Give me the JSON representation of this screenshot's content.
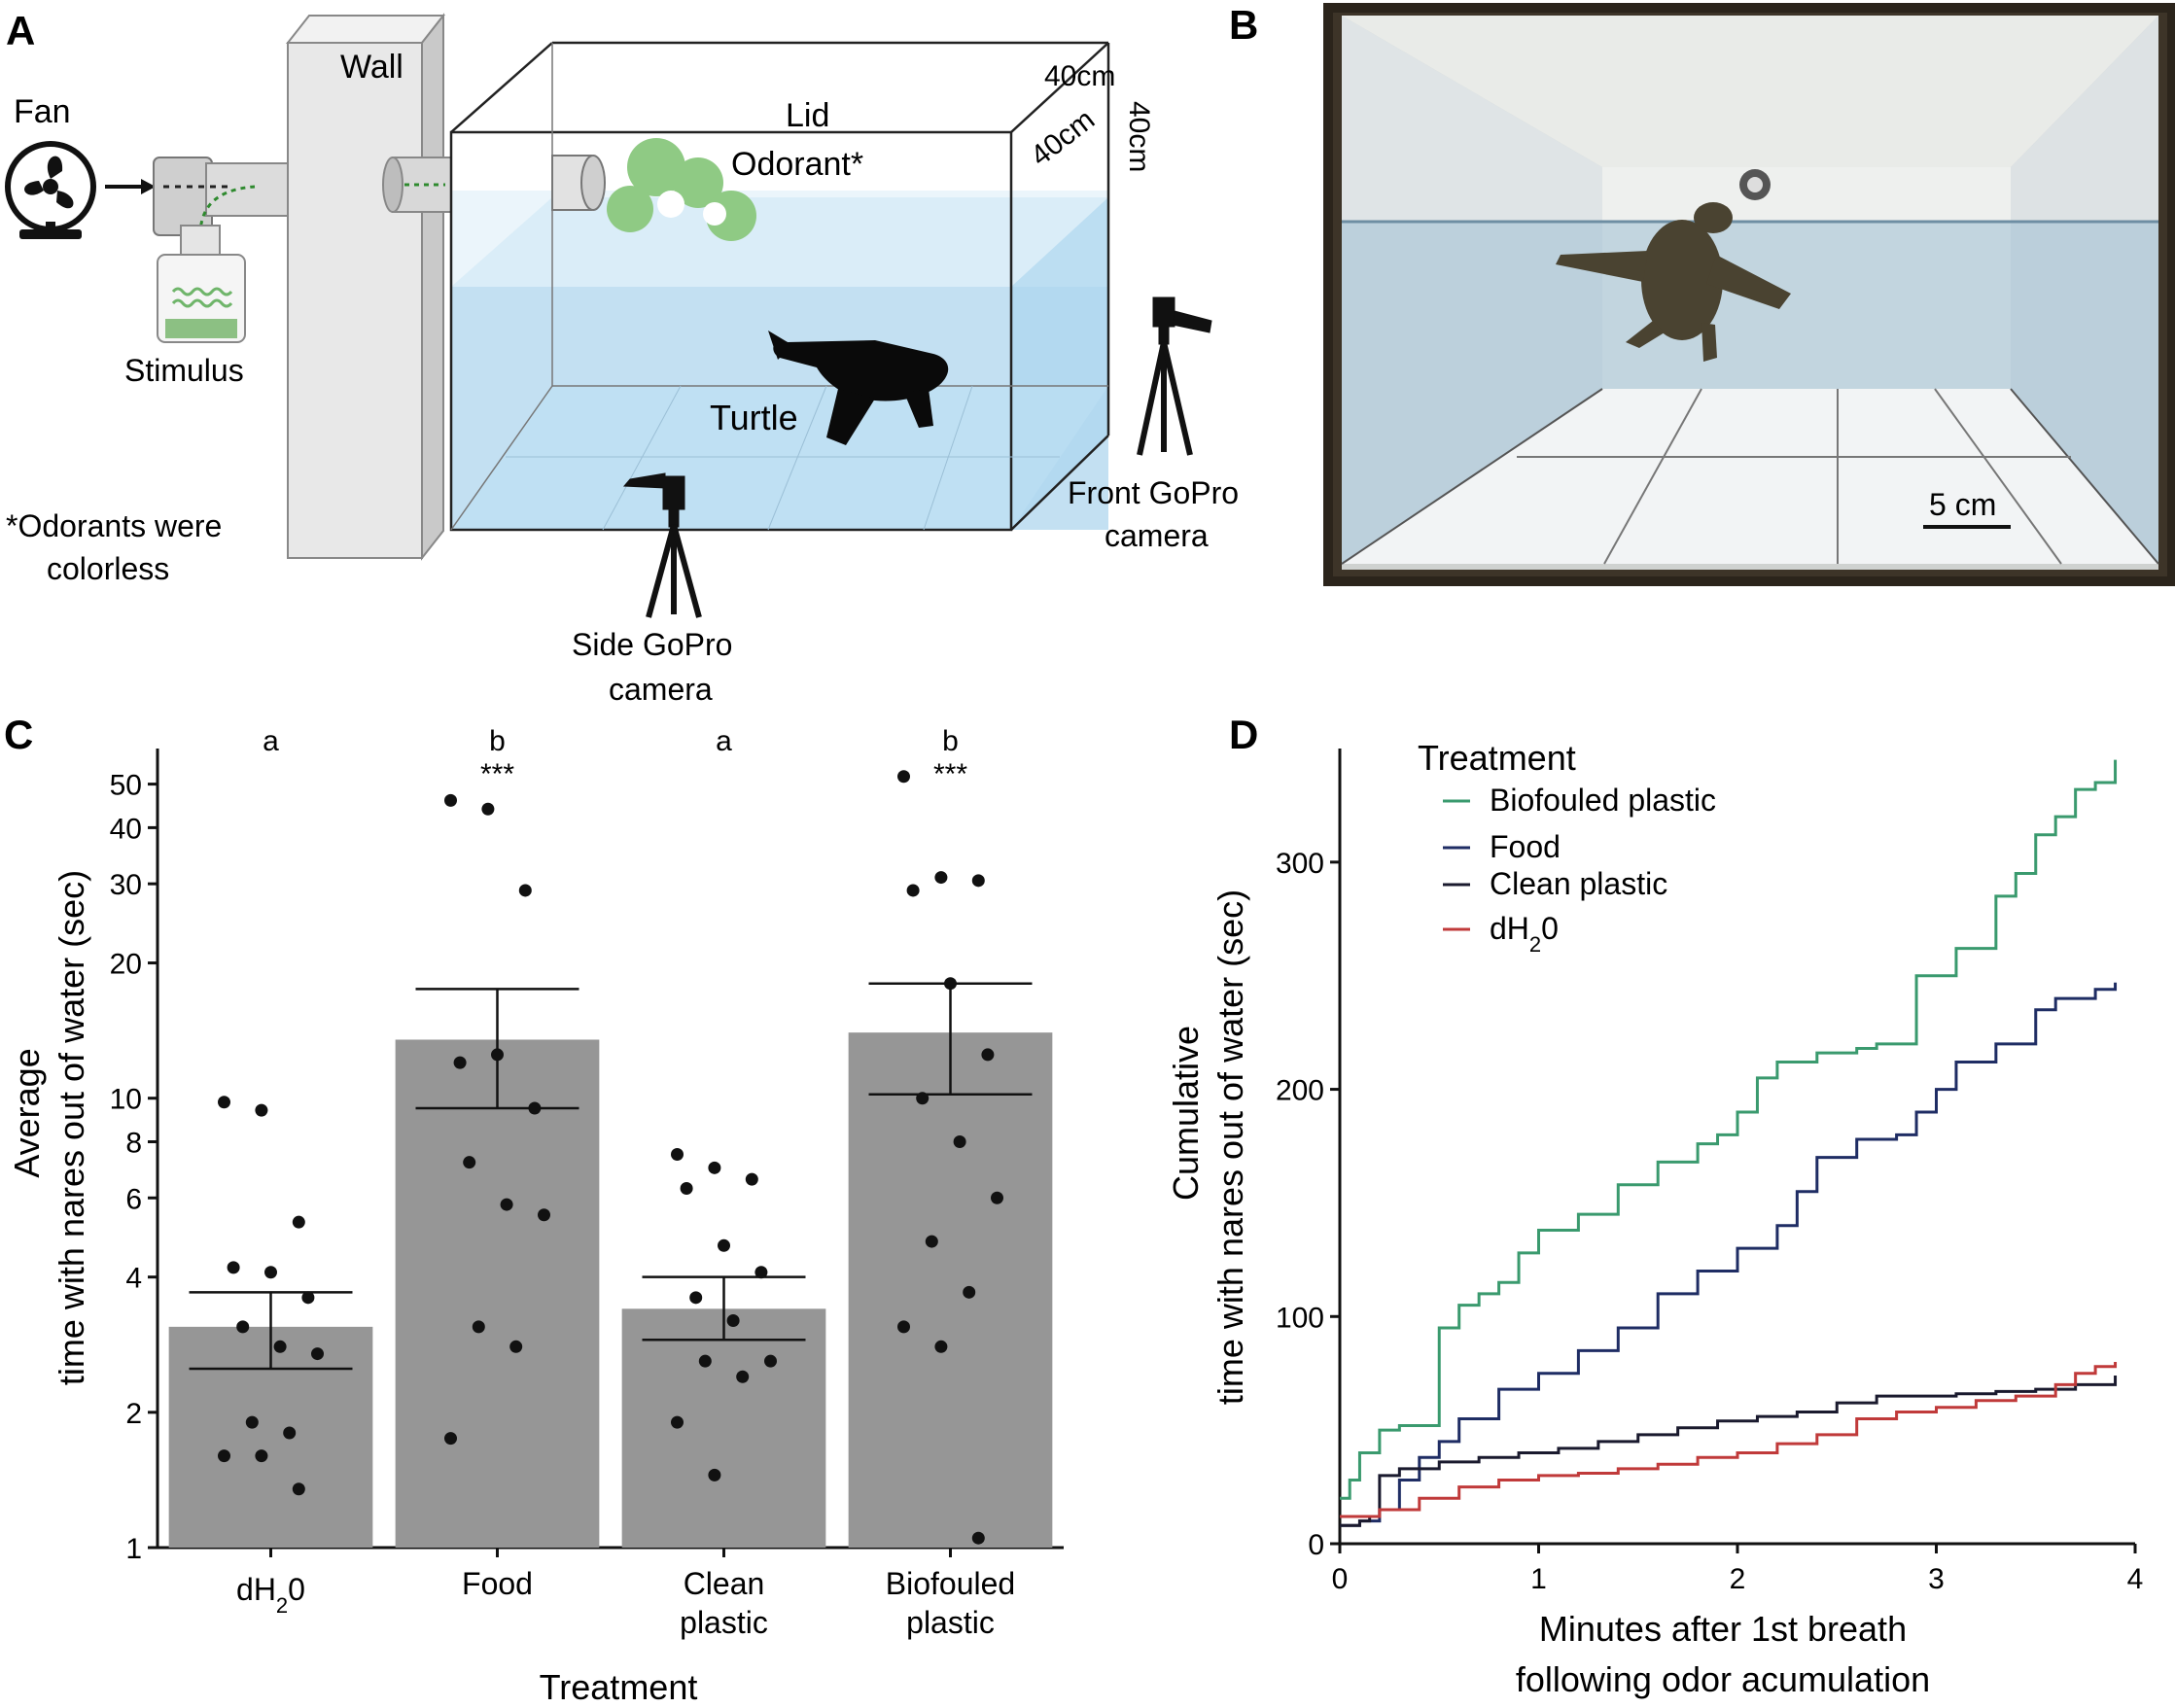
{
  "panel_a": {
    "letter": "A",
    "fan_label": "Fan",
    "stimulus_label": "Stimulus",
    "wall_label": "Wall",
    "lid_label": "Lid",
    "odorant_label": "Odorant*",
    "dim_top": "40cm",
    "dim_side": "40cm",
    "dim_depth": "40cm",
    "turtle_label": "Turtle",
    "front_camera_label": [
      "Front GoPro",
      "camera"
    ],
    "side_camera_label": [
      "Side GoPro",
      "camera"
    ],
    "footnote": [
      "*Odorants were",
      "colorless"
    ],
    "colors": {
      "water": "#cfe6f4",
      "water_dark": "#a9d2ec",
      "odor": "#8fca84",
      "wall": "#e6e6e6"
    }
  },
  "panel_b": {
    "letter": "B",
    "scale_bar_label": "5 cm"
  },
  "panel_c": {
    "letter": "C",
    "y_axis_title": [
      "Average",
      "time with nares out of water (sec)"
    ],
    "x_axis_title": "Treatment",
    "bar_color": "#969696",
    "point_color": "#111111"
  },
  "panel_d": {
    "letter": "D",
    "legend_title": "Treatment",
    "y_axis_title": [
      "Cumulative",
      "time with nares out of water (sec)"
    ],
    "x_axis_title_line1": "Minutes after 1st breath",
    "x_axis_title_line2": "following odor acumulation"
  },
  "chart_data": [
    {
      "panel": "C",
      "type": "bar",
      "yscale": "log",
      "ylim": [
        1,
        60
      ],
      "yticks": [
        1,
        2,
        4,
        6,
        8,
        10,
        20,
        30,
        40,
        50
      ],
      "ytick_labels": [
        "1",
        "2",
        "4",
        "6",
        "8",
        "10",
        "20",
        "30",
        "40",
        "50"
      ],
      "xlabel": "Treatment",
      "ylabel": "Average time with nares out of water (sec)",
      "categories": [
        "dH20",
        "Food",
        "Clean plastic",
        "Biofouled plastic"
      ],
      "category_labels": [
        [
          "dH",
          "2",
          "0"
        ],
        [
          "Food"
        ],
        [
          "Clean",
          "plastic"
        ],
        [
          "Biofouled",
          "plastic"
        ]
      ],
      "values": [
        3.1,
        13.5,
        3.4,
        14.0
      ],
      "error_low": [
        2.5,
        9.5,
        2.9,
        10.2
      ],
      "error_high": [
        3.7,
        17.5,
        4.0,
        18.0
      ],
      "significance_letters": [
        "a",
        "b",
        "a",
        "b"
      ],
      "significance_stars": [
        "",
        "***",
        "",
        "***"
      ],
      "points": [
        [
          9.8,
          9.4,
          5.3,
          4.2,
          4.1,
          3.6,
          3.1,
          2.8,
          2.7,
          1.9,
          1.8,
          1.6,
          1.6,
          1.35
        ],
        [
          46.0,
          44.0,
          29.0,
          12.0,
          12.5,
          9.5,
          7.2,
          5.8,
          5.5,
          3.1,
          2.8,
          1.75
        ],
        [
          7.5,
          7.0,
          6.6,
          6.3,
          4.7,
          4.1,
          3.6,
          3.2,
          2.6,
          2.6,
          2.4,
          1.9,
          1.45
        ],
        [
          52.0,
          31.0,
          30.5,
          29.0,
          18.0,
          12.5,
          10.0,
          8.0,
          6.0,
          4.8,
          3.7,
          3.1,
          2.8,
          1.05
        ]
      ]
    },
    {
      "panel": "D",
      "type": "line",
      "xlim": [
        0,
        4
      ],
      "ylim": [
        0,
        350
      ],
      "xticks": [
        0,
        1,
        2,
        3,
        4
      ],
      "yticks": [
        0,
        100,
        200,
        300
      ],
      "xlabel": "Minutes after 1st breath following odor acumulation",
      "ylabel": "Cumulative time with nares out of water (sec)",
      "legend_title": "Treatment",
      "legend_position": "top-left",
      "series": [
        {
          "name": "Biofouled plastic",
          "color": "#3a9a6e",
          "x": [
            0.0,
            0.05,
            0.1,
            0.2,
            0.3,
            0.4,
            0.5,
            0.6,
            0.7,
            0.8,
            0.9,
            1.0,
            1.2,
            1.4,
            1.6,
            1.8,
            1.9,
            2.0,
            2.1,
            2.2,
            2.4,
            2.6,
            2.7,
            2.85,
            2.9,
            3.1,
            3.3,
            3.4,
            3.5,
            3.6,
            3.7,
            3.8,
            3.9
          ],
          "y": [
            20,
            28,
            40,
            50,
            52,
            52,
            95,
            105,
            110,
            115,
            128,
            138,
            145,
            158,
            168,
            176,
            180,
            190,
            205,
            212,
            216,
            218,
            220,
            220,
            250,
            262,
            285,
            295,
            312,
            320,
            332,
            335,
            345
          ]
        },
        {
          "name": "Food",
          "color": "#1f2d64",
          "x": [
            0.0,
            0.1,
            0.2,
            0.3,
            0.4,
            0.5,
            0.6,
            0.8,
            1.0,
            1.2,
            1.4,
            1.6,
            1.8,
            2.0,
            2.2,
            2.3,
            2.4,
            2.6,
            2.8,
            2.9,
            3.0,
            3.1,
            3.3,
            3.5,
            3.6,
            3.8,
            3.9
          ],
          "y": [
            8,
            10,
            15,
            28,
            38,
            45,
            55,
            68,
            75,
            85,
            95,
            110,
            120,
            130,
            140,
            155,
            170,
            178,
            180,
            190,
            200,
            212,
            220,
            235,
            240,
            244,
            247
          ]
        },
        {
          "name": "Clean plastic",
          "color": "#1a1a2e",
          "x": [
            0.0,
            0.1,
            0.15,
            0.2,
            0.3,
            0.5,
            0.7,
            0.9,
            1.1,
            1.3,
            1.5,
            1.7,
            1.9,
            2.1,
            2.3,
            2.5,
            2.7,
            2.9,
            3.1,
            3.3,
            3.5,
            3.7,
            3.9
          ],
          "y": [
            8,
            10,
            12,
            30,
            33,
            36,
            38,
            40,
            42,
            45,
            48,
            51,
            54,
            56,
            58,
            62,
            65,
            65,
            66,
            67,
            68,
            70,
            74
          ]
        },
        {
          "name": "dH20",
          "color": "#c03a3a",
          "x": [
            0.0,
            0.2,
            0.4,
            0.6,
            0.8,
            1.0,
            1.2,
            1.4,
            1.6,
            1.8,
            2.0,
            2.2,
            2.4,
            2.6,
            2.8,
            3.0,
            3.2,
            3.4,
            3.6,
            3.7,
            3.8,
            3.9
          ],
          "y": [
            12,
            15,
            20,
            25,
            28,
            30,
            31,
            33,
            35,
            38,
            40,
            44,
            48,
            55,
            58,
            60,
            63,
            65,
            70,
            75,
            78,
            80
          ]
        }
      ]
    }
  ]
}
